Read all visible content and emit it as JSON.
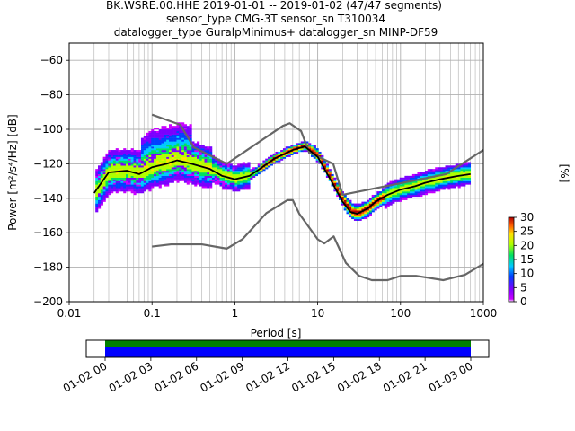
{
  "title": {
    "line1": "BK.WSRE.00.HHE   2019-01-01 -- 2019-01-02  (47/47 segments)",
    "line2": "sensor_type CMG-3T sensor_sn T310034",
    "line3": "datalogger_type GuralpMinimus+ datalogger_sn MINP-DF59"
  },
  "chart_data": [
    {
      "type": "heatmap",
      "name": "ppsd",
      "xlabel": "Period [s]",
      "ylabel": "Power [m²/s⁴/Hz] [dB]",
      "xscale": "log",
      "xlim": [
        0.01,
        1000
      ],
      "ylim": [
        -200,
        -50
      ],
      "x_ticks": [
        "0.01",
        "0.1",
        "1",
        "10",
        "100",
        "1000"
      ],
      "y_ticks": [
        "−60",
        "−80",
        "−100",
        "−120",
        "−140",
        "−160",
        "−180",
        "−200"
      ],
      "grid": true,
      "colorbar": {
        "label": "[%]",
        "range": [
          0,
          30
        ],
        "ticks": [
          "0",
          "5",
          "10",
          "15",
          "20",
          "25",
          "30"
        ]
      },
      "mean_curve": {
        "x": [
          0.02,
          0.03,
          0.05,
          0.07,
          0.1,
          0.15,
          0.2,
          0.3,
          0.5,
          0.7,
          1,
          1.5,
          2,
          3,
          5,
          7,
          10,
          15,
          20,
          25,
          30,
          40,
          50,
          70,
          100,
          150,
          200,
          300,
          500,
          700
        ],
        "y": [
          -137,
          -125,
          -124,
          -126,
          -122,
          -120,
          -118,
          -120,
          -123,
          -127,
          -129,
          -127,
          -123,
          -117,
          -112,
          -110,
          -116,
          -131,
          -142,
          -148,
          -149,
          -146,
          -142,
          -138,
          -135,
          -133,
          -131,
          -129,
          -127,
          -126
        ]
      },
      "nhnm": {
        "x": [
          0.1,
          0.22,
          0.32,
          0.8,
          3.8,
          4.6,
          6.3,
          7.9,
          15.4,
          20,
          354.8,
          1000
        ],
        "y": [
          -91.5,
          -97.4,
          -110.5,
          -120,
          -98,
          -96.5,
          -101,
          -113.5,
          -120,
          -138,
          -126,
          -112
        ]
      },
      "nlnm": {
        "x": [
          0.1,
          0.17,
          0.4,
          0.8,
          1.24,
          2.4,
          4.3,
          5,
          6,
          10,
          12,
          15.6,
          21.9,
          31.6,
          45,
          70,
          101,
          154,
          328,
          600,
          1000
        ],
        "y": [
          -168,
          -166.7,
          -166.7,
          -169.2,
          -163.7,
          -148.6,
          -141.1,
          -141.1,
          -149,
          -163.8,
          -166.2,
          -162.1,
          -177.5,
          -185,
          -187.5,
          -187.5,
          -185,
          -185,
          -187.5,
          -184.4,
          -178
        ]
      }
    },
    {
      "type": "timeline",
      "name": "data-coverage",
      "x_ticks": [
        "01-02 00",
        "01-02 03",
        "01-02 06",
        "01-02 09",
        "01-02 12",
        "01-02 15",
        "01-02 18",
        "01-02 21",
        "01-03 00"
      ],
      "bars": [
        {
          "name": "",
          "color": "#008000",
          "start": "01-02 00",
          "end": "01-03 00"
        },
        {
          "name": "",
          "color": "#0000ff",
          "start": "01-02 00",
          "end": "01-03 00"
        }
      ]
    }
  ]
}
